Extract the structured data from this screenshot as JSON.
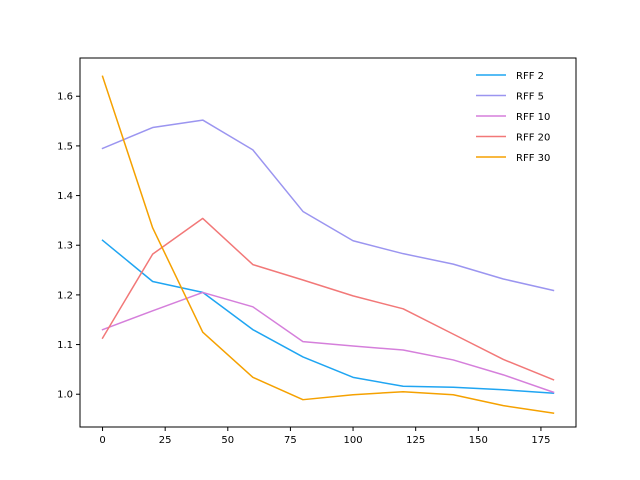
{
  "chart_data": {
    "type": "line",
    "title": "",
    "xlabel": "",
    "ylabel": "",
    "xlim": [
      -9,
      189
    ],
    "ylim": [
      0.934,
      1.677
    ],
    "x_ticks": [
      0,
      25,
      50,
      75,
      100,
      125,
      150,
      175
    ],
    "y_ticks": [
      1.0,
      1.1,
      1.2,
      1.3,
      1.4,
      1.5,
      1.6
    ],
    "grid": false,
    "legend_position": "top-right",
    "x": [
      0,
      20,
      40,
      60,
      80,
      100,
      120,
      140,
      160,
      180
    ],
    "series": [
      {
        "name": "RFF 2",
        "color": "#1fa5f2",
        "values": [
          1.31,
          1.227,
          1.205,
          1.13,
          1.075,
          1.034,
          1.016,
          1.014,
          1.009,
          1.002
        ]
      },
      {
        "name": "RFF 5",
        "color": "#9b95f0",
        "values": [
          1.495,
          1.537,
          1.552,
          1.492,
          1.368,
          1.309,
          1.283,
          1.262,
          1.232,
          1.209
        ]
      },
      {
        "name": "RFF 10",
        "color": "#d57fdb",
        "values": [
          1.13,
          1.168,
          1.205,
          1.176,
          1.106,
          1.097,
          1.089,
          1.069,
          1.039,
          1.004
        ]
      },
      {
        "name": "RFF 20",
        "color": "#f27878",
        "values": [
          1.113,
          1.282,
          1.354,
          1.261,
          1.23,
          1.198,
          1.172,
          1.121,
          1.07,
          1.029
        ]
      },
      {
        "name": "RFF 30",
        "color": "#f5a100",
        "values": [
          1.64,
          1.335,
          1.125,
          1.034,
          0.989,
          0.999,
          1.005,
          0.999,
          0.977,
          0.962
        ]
      }
    ]
  }
}
